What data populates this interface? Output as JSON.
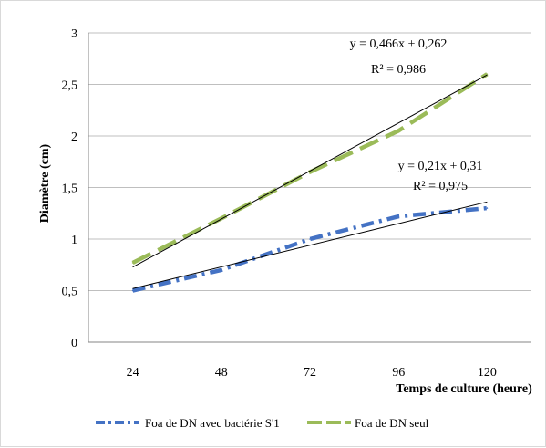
{
  "chart_data": {
    "type": "line",
    "title": "",
    "xlabel": "Temps de culture (heure)",
    "ylabel": "Diamètre (cm)",
    "categories": [
      "24",
      "48",
      "72",
      "96",
      "120"
    ],
    "x": [
      24,
      48,
      72,
      96,
      120
    ],
    "ylim": [
      0,
      3
    ],
    "yticks": [
      "0",
      "0,5",
      "1",
      "1,5",
      "2",
      "2,5",
      "3"
    ],
    "grid": true,
    "legend_position": "bottom",
    "series": [
      {
        "name": "Foa de DN  avec bactérie S'1",
        "color": "#4472c4",
        "dash": "dash-dot",
        "values": [
          0.5,
          0.7,
          1.0,
          1.22,
          1.3
        ],
        "trendline": {
          "slope": 0.21,
          "intercept": 0.31
        },
        "equation": "y = 0,21x + 0,31",
        "r2": "R² = 0,975"
      },
      {
        "name": "Foa de DN  seul",
        "color": "#9bbb59",
        "dash": "dash",
        "values": [
          0.77,
          1.2,
          1.65,
          2.05,
          2.6
        ],
        "trendline": {
          "slope": 0.466,
          "intercept": 0.262
        },
        "equation": "y = 0,466x + 0,262",
        "r2": "R² = 0,986"
      }
    ]
  }
}
